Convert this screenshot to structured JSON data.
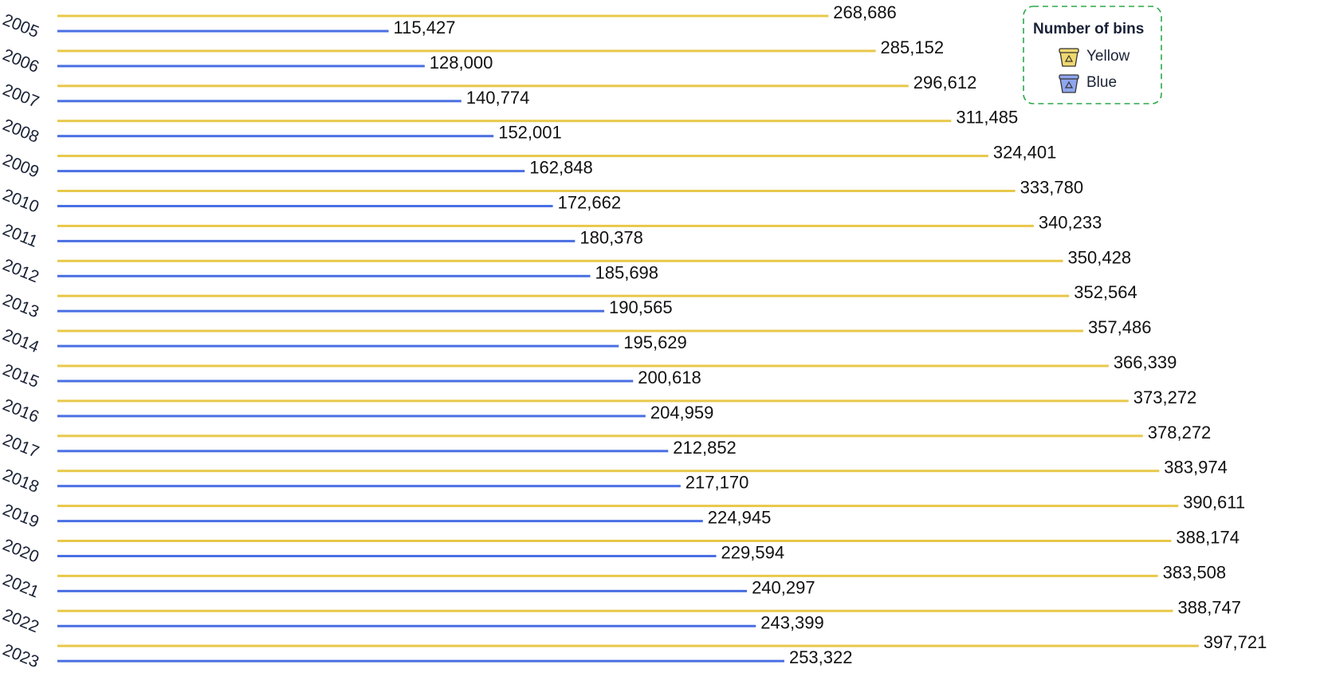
{
  "chart_data": {
    "type": "bar",
    "orientation": "horizontal",
    "categories": [
      "2005",
      "2006",
      "2007",
      "2008",
      "2009",
      "2010",
      "2011",
      "2012",
      "2013",
      "2014",
      "2015",
      "2016",
      "2017",
      "2018",
      "2019",
      "2020",
      "2021",
      "2022",
      "2023"
    ],
    "series": [
      {
        "name": "Yellow",
        "color": "#e8c84a",
        "values": [
          268686,
          285152,
          296612,
          311485,
          324401,
          333780,
          340233,
          350428,
          352564,
          357486,
          366339,
          373272,
          378272,
          383974,
          390611,
          388174,
          383508,
          388747,
          397721
        ],
        "labels": [
          "268,686",
          "285,152",
          "296,612",
          "311,485",
          "324,401",
          "333,780",
          "340,233",
          "350,428",
          "352,564",
          "357,486",
          "366,339",
          "373,272",
          "378,272",
          "383,974",
          "390,611",
          "388,174",
          "383,508",
          "388,747",
          "397,721"
        ]
      },
      {
        "name": "Blue",
        "color": "#4a6fe3",
        "values": [
          115427,
          128000,
          140774,
          152001,
          162848,
          172662,
          180378,
          185698,
          190565,
          195629,
          200618,
          204959,
          212852,
          217170,
          224945,
          229594,
          240297,
          243399,
          253322
        ],
        "labels": [
          "115,427",
          "128,000",
          "140,774",
          "152,001",
          "162,848",
          "172,662",
          "180,378",
          "185,698",
          "190,565",
          "195,629",
          "200,618",
          "204,959",
          "212,852",
          "217,170",
          "224,945",
          "229,594",
          "240,297",
          "243,399",
          "253,322"
        ]
      }
    ],
    "legend": {
      "title": "Number of bins",
      "placement": "top-right",
      "border_color": "#2aa84a"
    },
    "xlim": [
      0,
      400000
    ]
  }
}
